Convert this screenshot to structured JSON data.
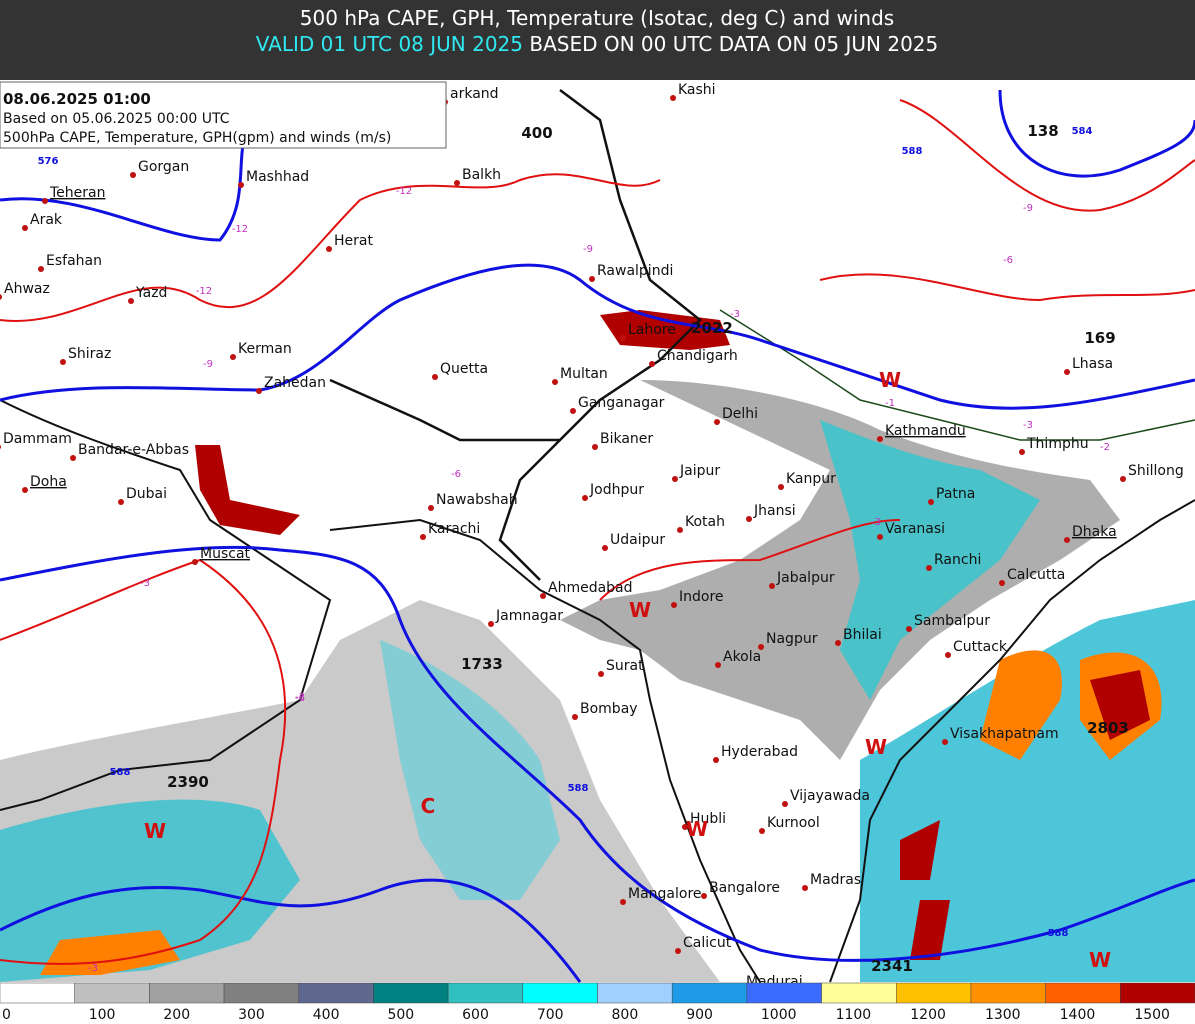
{
  "header": {
    "title": "500 hPa CAPE, GPH, Temperature (Isotac, deg C) and winds",
    "valid": "VALID 01 UTC 08 JUN 2025",
    "based": "BASED ON 00 UTC DATA ON 05 JUN 2025"
  },
  "info": {
    "lines": [
      "08.06.2025 01:00",
      "Based on 05.06.2025 00:00 UTC",
      "500hPa CAPE, Temperature, GPH(gpm) and winds (m/s)"
    ]
  },
  "map": {
    "cities": [
      "arkand",
      "Kashi",
      "Gorgan",
      "Teheran",
      "Mashhad",
      "Balkh",
      "Arak",
      "Herat",
      "Esfahan",
      "Rawalpindi",
      "Yazd",
      "Ahwaz",
      "Lahore",
      "Shiraz",
      "Kerman",
      "Chandigarh",
      "Zahedan",
      "Quetta",
      "Multan",
      "Ganganagar",
      "Delhi",
      "Dammam",
      "Bandar-e-Abbas",
      "Bikaner",
      "Kathmandu",
      "Thimphu",
      "Shillong",
      "Lhasa",
      "Doha",
      "Dubai",
      "Jaipur",
      "Kanpur",
      "Jodhpur",
      "Patna",
      "Nawabshah",
      "Jhansi",
      "Muscat",
      "Karachi",
      "Kotah",
      "Varanasi",
      "Dhaka",
      "Udaipur",
      "Ranchi",
      "Calcutta",
      "Jabalpur",
      "Ahmedabad",
      "Indore",
      "Jamnagar",
      "Sambalpur",
      "Nagpur",
      "Bhilai",
      "Cuttack",
      "Surat",
      "Akola",
      "Bombay",
      "Hyderabad",
      "Visakhapatnam",
      "Vijayawada",
      "Hubli",
      "Kurnool",
      "Madras",
      "Bangalore",
      "Mangalore",
      "Calicut",
      "Madurai"
    ],
    "height_labels": [
      "400",
      "138",
      "169",
      "2022",
      "1733",
      "2390",
      "2803",
      "2341"
    ],
    "temperature_labels": [
      "-12",
      "-12",
      "-12",
      "-9",
      "-9",
      "-9",
      "-6",
      "-6",
      "-6",
      "-3",
      "-3",
      "-3",
      "-3",
      "-3",
      "-3",
      "-2",
      "-1"
    ],
    "gph_labels": [
      "576",
      "584",
      "588",
      "588",
      "588",
      "588"
    ],
    "warm_labels": [
      "W",
      "W",
      "W",
      "W",
      "W",
      "W"
    ],
    "cold_labels": [
      "C"
    ]
  },
  "colorbar": {
    "levels": [
      0,
      100,
      200,
      300,
      400,
      500,
      600,
      700,
      800,
      900,
      1000,
      1100,
      1200,
      1300,
      1400,
      1500
    ],
    "colors": [
      "#ffffff",
      "#c0c0c0",
      "#a0a0a0",
      "#808080",
      "#606890",
      "#008080",
      "#30c0c0",
      "#00ffff",
      "#a0d0ff",
      "#1e9be6",
      "#3c6cff",
      "#ffff99",
      "#ffc000",
      "#ff9000",
      "#ff6000",
      "#b00000"
    ]
  }
}
